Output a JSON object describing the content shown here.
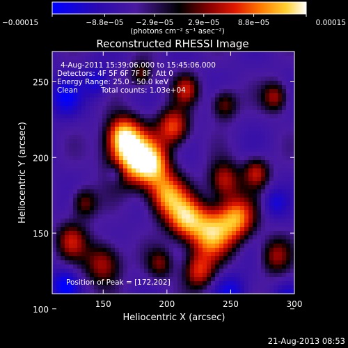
{
  "chart_data": {
    "type": "heatmap",
    "title": "Reconstructed RHESSI Image",
    "xlabel": "Heliocentric X (arcsec)",
    "ylabel": "Heliocentric Y (arcsec)",
    "xlim": [
      110,
      300
    ],
    "ylim": [
      110,
      270
    ],
    "x_ticks": [
      150,
      200,
      250,
      300
    ],
    "y_ticks": [
      100,
      150,
      200,
      250
    ],
    "colorbar": {
      "range": [
        -0.00015,
        0.00015
      ],
      "tick_values": [
        -0.00015,
        -8.8e-05,
        -2.9e-05,
        2.9e-05,
        8.8e-05,
        0.00015
      ],
      "tick_labels": [
        "−0.00015",
        "−8.8e−05",
        "−2.9e−05",
        "2.9e−05",
        "8.8e−05",
        "0.00015"
      ],
      "unit_label": "(photons cm⁻² s⁻¹ asec⁻²)",
      "colors": [
        "#0000ff",
        "#2a0ab0",
        "#4b1aa0",
        "#000000",
        "#8a0000",
        "#e01800",
        "#ff7a00",
        "#ffd030",
        "#ffffff"
      ]
    },
    "annotations": {
      "time_range": "4-Aug-2011 15:39:06.000 to 15:45:06.000",
      "detectors": "Detectors: 4F 5F 6F 7F 8F, Att 0",
      "energy_range": "Energy Range: 25.0 - 50.0 keV",
      "clean": "Clean",
      "total_counts": "Total counts: 1.03e+04",
      "peak": "Position of Peak = [172,202]"
    },
    "peak": {
      "x": 172,
      "y": 202
    },
    "footer_date": "21-Aug-2013 08:53"
  }
}
